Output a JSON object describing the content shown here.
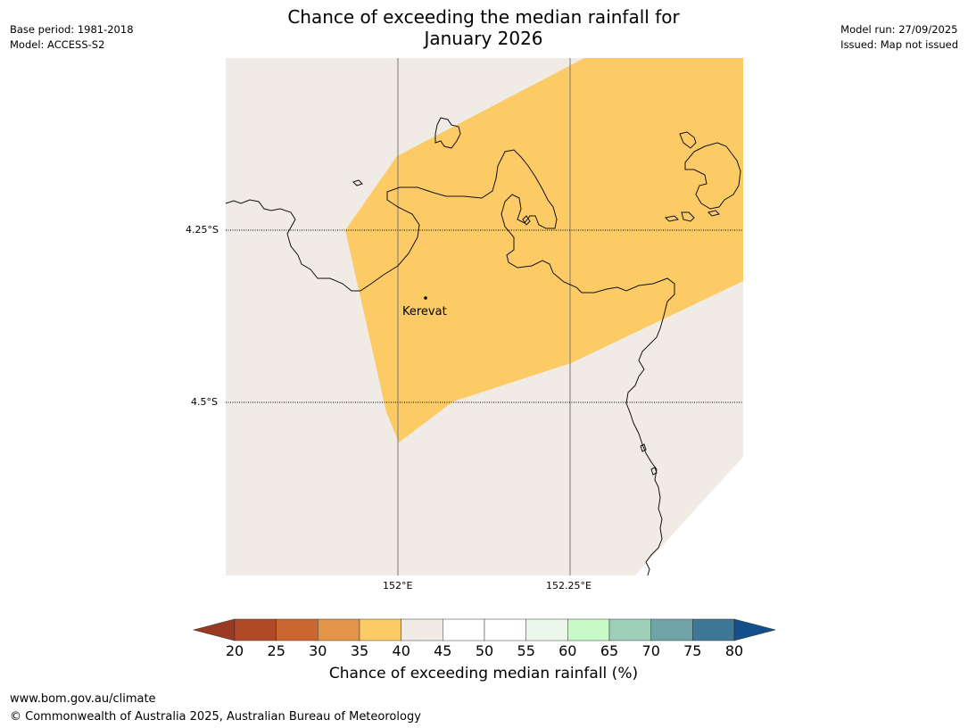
{
  "header": {
    "base_period": "Base period: 1981-2018",
    "model": "Model: ACCESS-S2",
    "model_run": "Model run: 27/09/2025",
    "issued": "Issued: Map not issued",
    "title_line1": "Chance of exceeding the median rainfall for",
    "title_line2": "January 2026"
  },
  "map": {
    "lat_labels": [
      "4.25°S",
      "4.5°S"
    ],
    "lon_labels": [
      "152°E",
      "152.25°E"
    ],
    "place_name": "Kerevat",
    "land_color": "#f0ebe5",
    "shade_color": "#fdcb66",
    "shaded_category": "35-40"
  },
  "colorbar": {
    "ticks": [
      "20",
      "25",
      "30",
      "35",
      "40",
      "45",
      "50",
      "55",
      "60",
      "65",
      "70",
      "75",
      "80"
    ],
    "under_color": "#9a3a22",
    "over_color": "#134f8a",
    "colors": [
      "#b04a26",
      "#cc6631",
      "#e29548",
      "#fdcb66",
      "#f0ebe5",
      "#ffffff",
      "#ffffff",
      "#ebf7ea",
      "#c8fac8",
      "#9ecfb8",
      "#6fa5a6",
      "#3f7796"
    ],
    "label": "Chance of exceeding median rainfall (%)"
  },
  "footer": {
    "url": "www.bom.gov.au/climate",
    "copyright": "© Commonwealth of Australia 2025, Australian Bureau of Meteorology"
  }
}
